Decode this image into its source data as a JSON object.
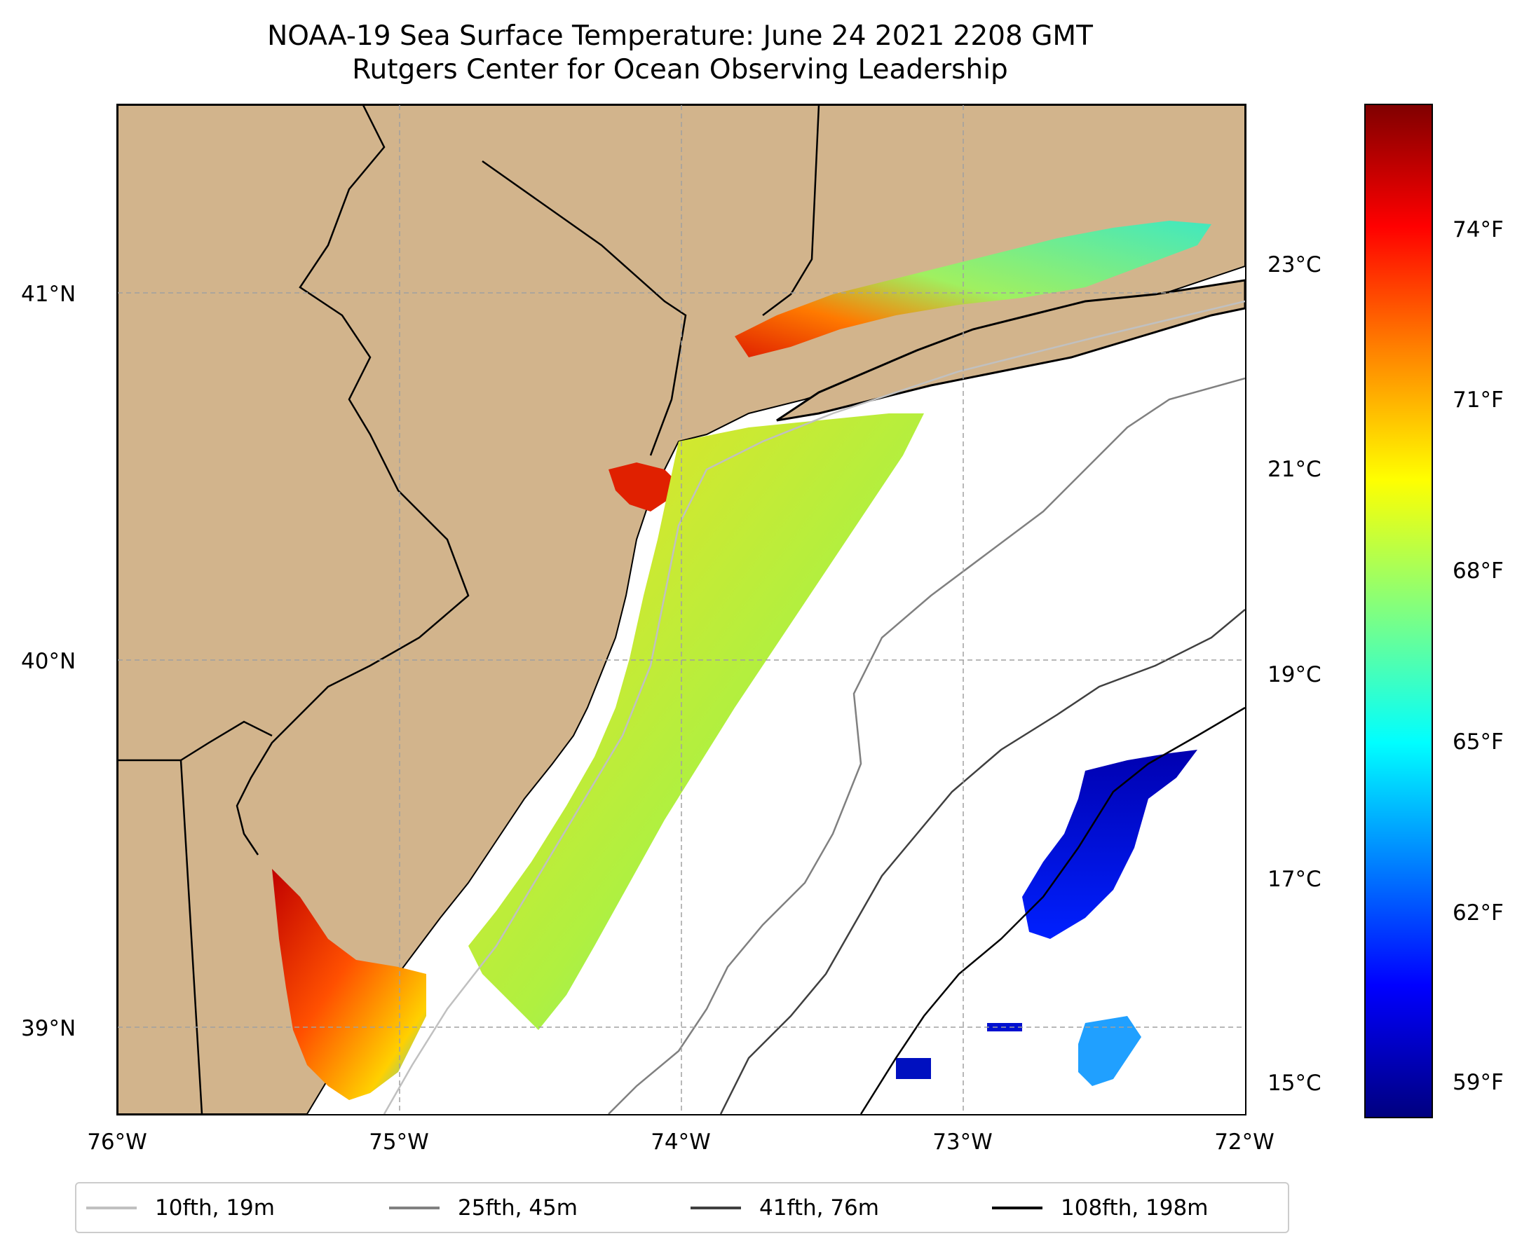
{
  "title": {
    "line1": "NOAA-19 Sea Surface Temperature: June 24 2021 2208 GMT",
    "line2": "Rutgers Center for Ocean Observing Leadership"
  },
  "map": {
    "land_color": "#d2b48c",
    "ocean_color": "#ffffff",
    "grid": "dashed",
    "lon_labels": [
      "76°W",
      "75°W",
      "74°W",
      "73°W",
      "72°W"
    ],
    "lat_labels": [
      "41°N",
      "40°N",
      "39°N"
    ]
  },
  "colorbar": {
    "colormap": "jet",
    "celsius_labels": [
      "23°C",
      "21°C",
      "19°C",
      "17°C",
      "15°C"
    ],
    "fahrenheit_labels": [
      "74°F",
      "71°F",
      "68°F",
      "65°F",
      "62°F",
      "59°F"
    ]
  },
  "legend": {
    "entries": [
      {
        "label": "10fth, 19m",
        "color": "#c0c0c0"
      },
      {
        "label": "25fth, 45m",
        "color": "#808080"
      },
      {
        "label": "41fth, 76m",
        "color": "#404040"
      },
      {
        "label": "108fth, 198m",
        "color": "#000000"
      }
    ]
  }
}
